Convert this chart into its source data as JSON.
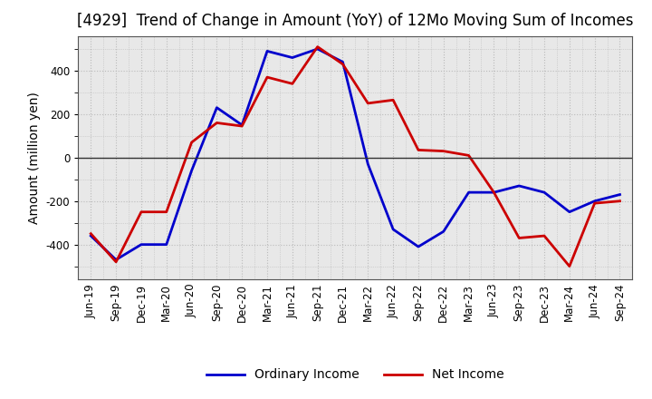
{
  "title": "[4929]  Trend of Change in Amount (YoY) of 12Mo Moving Sum of Incomes",
  "ylabel": "Amount (million yen)",
  "x_labels": [
    "Jun-19",
    "Sep-19",
    "Dec-19",
    "Mar-20",
    "Jun-20",
    "Sep-20",
    "Dec-20",
    "Mar-21",
    "Jun-21",
    "Sep-21",
    "Dec-21",
    "Mar-22",
    "Jun-22",
    "Sep-22",
    "Dec-22",
    "Mar-23",
    "Jun-23",
    "Sep-23",
    "Dec-23",
    "Mar-24",
    "Jun-24",
    "Sep-24"
  ],
  "ordinary_income": [
    -360,
    -470,
    -400,
    -400,
    -60,
    230,
    150,
    490,
    460,
    500,
    440,
    -30,
    -330,
    -410,
    -340,
    -160,
    -160,
    -130,
    -160,
    -250,
    -200,
    -170
  ],
  "net_income": [
    -350,
    -480,
    -250,
    -250,
    70,
    160,
    145,
    370,
    340,
    510,
    430,
    250,
    265,
    35,
    30,
    10,
    -160,
    -370,
    -360,
    -500,
    -210,
    -200
  ],
  "ordinary_color": "#0000cc",
  "net_color": "#cc0000",
  "ylim": [
    -560,
    560
  ],
  "yticks": [
    -400,
    -200,
    0,
    200,
    400
  ],
  "bg_color": "#ffffff",
  "plot_bg_color": "#e8e8e8",
  "grid_color": "#bbbbbb",
  "legend_labels": [
    "Ordinary Income",
    "Net Income"
  ],
  "title_fontsize": 12,
  "label_fontsize": 10,
  "tick_fontsize": 8.5
}
